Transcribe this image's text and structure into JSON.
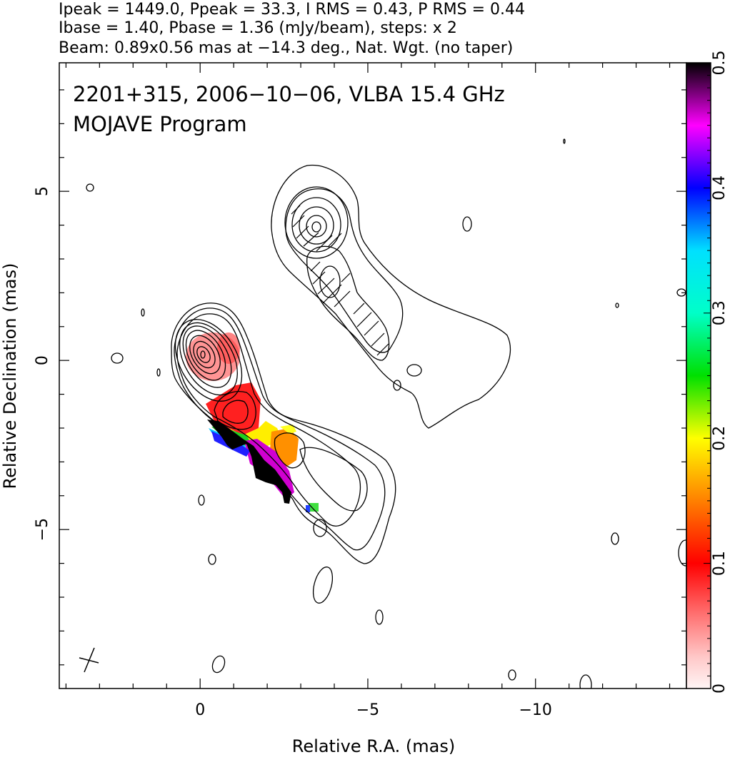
{
  "header": {
    "line1": "Ipeak = 1449.0, Ppeak = 33.3, I RMS = 0.43, P RMS = 0.44",
    "line2": "Ibase = 1.40, Pbase = 1.36 (mJy/beam), steps: x 2",
    "line3": "Beam: 0.89x0.56 mas at −14.3 deg., Nat. Wgt. (no taper)"
  },
  "chart_data": {
    "type": "contour-map",
    "title": "2201+315, 2006−10−06, VLBA 15.4 GHz",
    "subtitle": "MOJAVE Program",
    "xlabel": "Relative R.A. (mas)",
    "ylabel": "Relative Declination (mas)",
    "xlim": [
      4.2,
      -14.5
    ],
    "ylim": [
      -9.7,
      8.8
    ],
    "x_axis_reversed": true,
    "xticks": [
      0,
      -5,
      -10
    ],
    "xtick_labels": [
      "0",
      "−5",
      "−10"
    ],
    "yticks": [
      5,
      0,
      -5
    ],
    "ytick_labels": [
      "5",
      "0",
      "−5"
    ],
    "colorbar": {
      "min": 0,
      "max": 0.5,
      "ticks": [
        0,
        0.1,
        0.2,
        0.3,
        0.4,
        0.5
      ],
      "tick_labels": [
        "0",
        "0.1",
        "0.2",
        "0.3",
        "0.4",
        "0.5"
      ],
      "orientation": "vertical",
      "placement": "right"
    },
    "core": {
      "x": 0,
      "y": 0
    },
    "polarization_colors": [
      {
        "x": -0.6,
        "y": -0.1,
        "value": 0.06
      },
      {
        "x": -1.2,
        "y": -1.5,
        "value": 0.09
      },
      {
        "x": -2.2,
        "y": -2.8,
        "value": 0.13
      },
      {
        "x": -2.5,
        "y": -2.5,
        "value": 0.18
      },
      {
        "x": -1.7,
        "y": -3.2,
        "value": 0.27
      },
      {
        "x": -1.9,
        "y": -3.6,
        "value": 0.5
      },
      {
        "x": -3.2,
        "y": -4.4,
        "value": 0.32
      }
    ],
    "grid": false,
    "legend": "none"
  }
}
